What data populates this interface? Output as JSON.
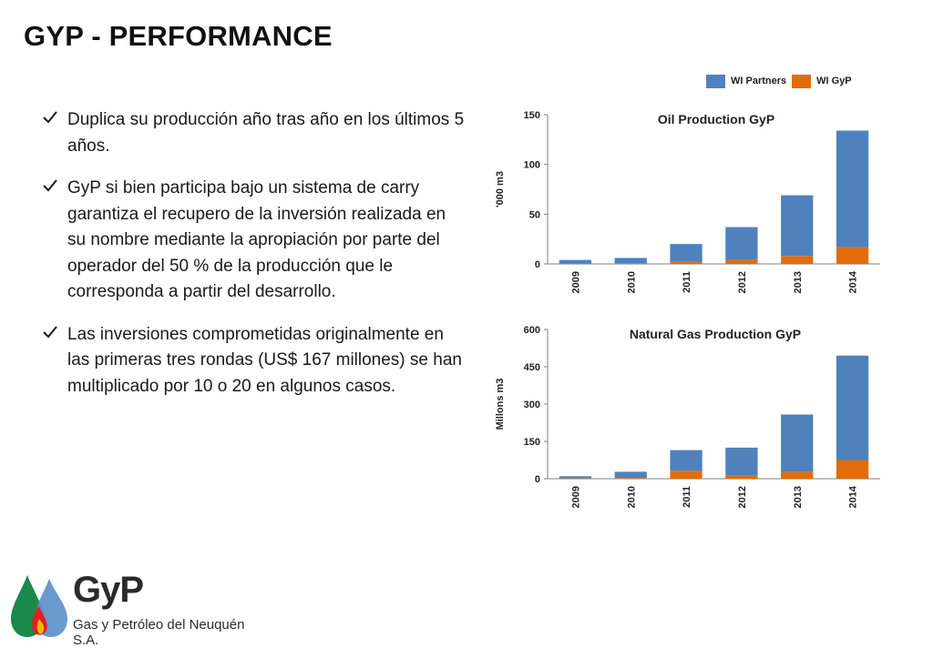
{
  "title": "GYP - PERFORMANCE",
  "bullets": [
    "Duplica su producción año tras año en los últimos 5 años.",
    "GyP si bien participa bajo un sistema de carry garantiza el recupero de la inversión realizada en su nombre mediante la apropiación por parte del operador del 50 % de la producción que le corresponda a partir del desarrollo.",
    "Las inversiones comprometidas originalmente en las primeras tres rondas (US$ 167 millones) se han multiplicado por 10 o 20 en algunos casos."
  ],
  "colors": {
    "partners": "#4f81bd",
    "gyp": "#e36c0a",
    "logo_green": "#1a8a4a",
    "logo_blue": "#5b8fc9",
    "logo_red": "#e02020",
    "logo_yellow": "#f5b800"
  },
  "legend": [
    "WI Partners",
    "WI GyP"
  ],
  "chart_data": [
    {
      "type": "bar",
      "stacked": true,
      "title": "Oil Production GyP",
      "ylabel": "'000 m3",
      "categories": [
        "2009",
        "2010",
        "2011",
        "2012",
        "2013",
        "2014"
      ],
      "ylim": [
        0,
        150
      ],
      "yticks": [
        0,
        50,
        100,
        150
      ],
      "series": [
        {
          "name": "WI GyP",
          "values": [
            0.5,
            0.8,
            2,
            4,
            8,
            17
          ]
        },
        {
          "name": "WI Partners",
          "values": [
            3.5,
            5.2,
            18,
            33,
            61,
            117
          ]
        }
      ]
    },
    {
      "type": "bar",
      "stacked": true,
      "title": "Natural Gas Production GyP",
      "ylabel": "Millons m3",
      "categories": [
        "2009",
        "2010",
        "2011",
        "2012",
        "2013",
        "2014"
      ],
      "ylim": [
        0,
        600
      ],
      "yticks": [
        0,
        150,
        300,
        450,
        600
      ],
      "series": [
        {
          "name": "WI GyP",
          "values": [
            2,
            3,
            32,
            12,
            28,
            75
          ]
        },
        {
          "name": "WI Partners",
          "values": [
            8,
            25,
            83,
            113,
            230,
            420
          ]
        }
      ]
    }
  ],
  "logo": {
    "brand": "GyP",
    "subtitle": "Gas y Petróleo del Neuquén S.A."
  }
}
